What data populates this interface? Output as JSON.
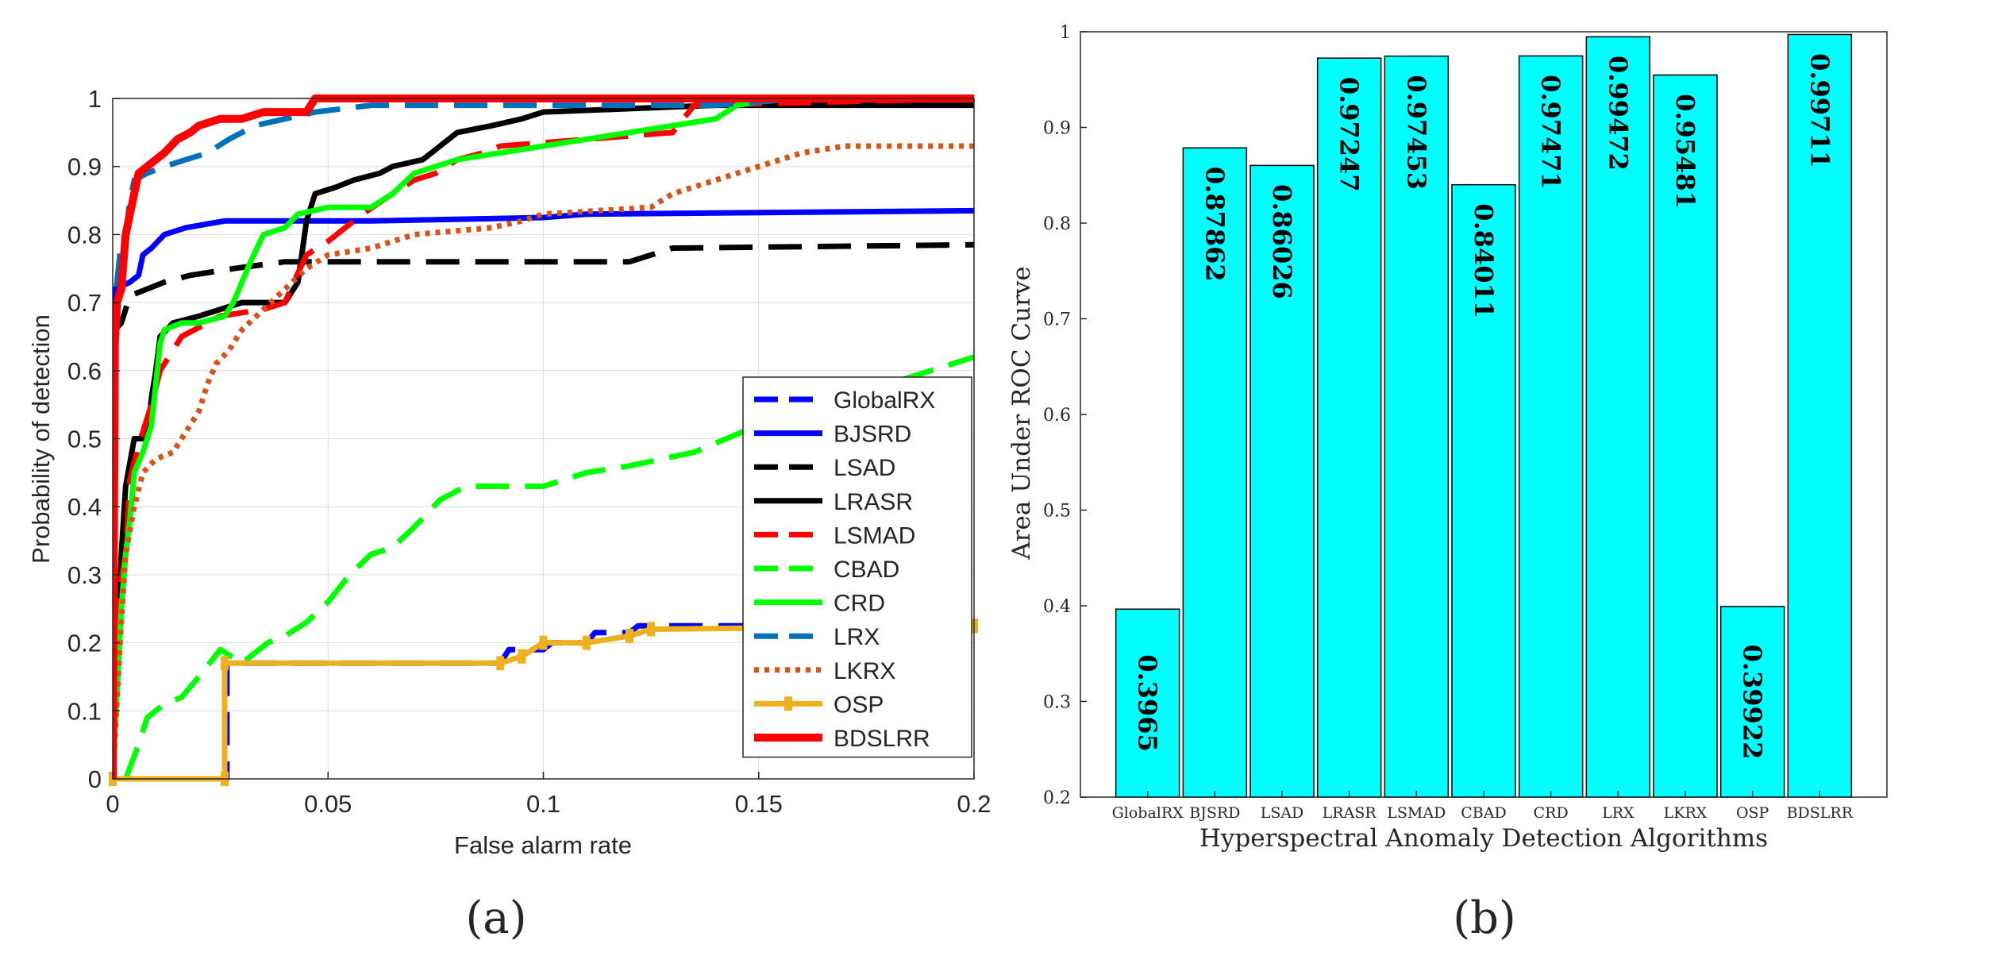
{
  "chart_data": [
    {
      "type": "line",
      "panel_label": "(a)",
      "title": "",
      "xlabel": "False alarm rate",
      "ylabel": "Probability of detection",
      "xlim": [
        0,
        0.2
      ],
      "ylim": [
        0,
        1
      ],
      "xticks": [
        "0",
        "0.05",
        "0.1",
        "0.15",
        "0.2"
      ],
      "yticks": [
        "0",
        "0.1",
        "0.2",
        "0.3",
        "0.4",
        "0.5",
        "0.6",
        "0.7",
        "0.8",
        "0.9",
        "1"
      ],
      "grid": true,
      "legend_position": "right",
      "series": [
        {
          "name": "GlobalRX",
          "color": "#0000ff",
          "style": "dashed",
          "points": [
            [
              0,
              0
            ],
            [
              0.0265,
              0
            ],
            [
              0.0265,
              0.17
            ],
            [
              0.09,
              0.17
            ],
            [
              0.092,
              0.19
            ],
            [
              0.1,
              0.19
            ],
            [
              0.102,
              0.2
            ],
            [
              0.11,
              0.2
            ],
            [
              0.112,
              0.215
            ],
            [
              0.12,
              0.215
            ],
            [
              0.122,
              0.225
            ],
            [
              0.2,
              0.225
            ]
          ]
        },
        {
          "name": "BJSRD",
          "color": "#0000ff",
          "style": "solid",
          "points": [
            [
              0,
              0
            ],
            [
              0.0005,
              0.72
            ],
            [
              0.004,
              0.73
            ],
            [
              0.006,
              0.74
            ],
            [
              0.007,
              0.77
            ],
            [
              0.009,
              0.78
            ],
            [
              0.012,
              0.8
            ],
            [
              0.017,
              0.81
            ],
            [
              0.026,
              0.82
            ],
            [
              0.06,
              0.82
            ],
            [
              0.1,
              0.825
            ],
            [
              0.11,
              0.83
            ],
            [
              0.2,
              0.835
            ]
          ]
        },
        {
          "name": "LSAD",
          "color": "#000000",
          "style": "dashed",
          "points": [
            [
              0,
              0
            ],
            [
              0.0005,
              0.66
            ],
            [
              0.002,
              0.67
            ],
            [
              0.004,
              0.71
            ],
            [
              0.008,
              0.72
            ],
            [
              0.012,
              0.73
            ],
            [
              0.018,
              0.74
            ],
            [
              0.028,
              0.75
            ],
            [
              0.04,
              0.76
            ],
            [
              0.12,
              0.76
            ],
            [
              0.13,
              0.78
            ],
            [
              0.2,
              0.785
            ]
          ]
        },
        {
          "name": "LRASR",
          "color": "#000000",
          "style": "solid",
          "points": [
            [
              0,
              0
            ],
            [
              0.002,
              0.33
            ],
            [
              0.003,
              0.43
            ],
            [
              0.005,
              0.5
            ],
            [
              0.008,
              0.5
            ],
            [
              0.009,
              0.56
            ],
            [
              0.01,
              0.6
            ],
            [
              0.011,
              0.65
            ],
            [
              0.014,
              0.67
            ],
            [
              0.02,
              0.68
            ],
            [
              0.03,
              0.7
            ],
            [
              0.04,
              0.7
            ],
            [
              0.043,
              0.73
            ],
            [
              0.045,
              0.82
            ],
            [
              0.047,
              0.86
            ],
            [
              0.052,
              0.87
            ],
            [
              0.056,
              0.88
            ],
            [
              0.062,
              0.89
            ],
            [
              0.065,
              0.9
            ],
            [
              0.072,
              0.91
            ],
            [
              0.076,
              0.93
            ],
            [
              0.08,
              0.95
            ],
            [
              0.088,
              0.96
            ],
            [
              0.095,
              0.97
            ],
            [
              0.1,
              0.98
            ],
            [
              0.14,
              0.99
            ],
            [
              0.2,
              0.99
            ]
          ]
        },
        {
          "name": "LSMAD",
          "color": "#ff0000",
          "style": "dashed",
          "points": [
            [
              0,
              0
            ],
            [
              0.001,
              0.26
            ],
            [
              0.003,
              0.33
            ],
            [
              0.004,
              0.44
            ],
            [
              0.006,
              0.49
            ],
            [
              0.009,
              0.55
            ],
            [
              0.011,
              0.6
            ],
            [
              0.012,
              0.61
            ],
            [
              0.016,
              0.65
            ],
            [
              0.025,
              0.68
            ],
            [
              0.035,
              0.69
            ],
            [
              0.04,
              0.7
            ],
            [
              0.042,
              0.73
            ],
            [
              0.045,
              0.77
            ],
            [
              0.05,
              0.79
            ],
            [
              0.052,
              0.8
            ],
            [
              0.058,
              0.83
            ],
            [
              0.065,
              0.86
            ],
            [
              0.07,
              0.88
            ],
            [
              0.075,
              0.89
            ],
            [
              0.08,
              0.91
            ],
            [
              0.086,
              0.92
            ],
            [
              0.09,
              0.93
            ],
            [
              0.13,
              0.95
            ],
            [
              0.135,
              0.99
            ],
            [
              0.2,
              1.0
            ]
          ]
        },
        {
          "name": "CBAD",
          "color": "#00ff00",
          "style": "dashed",
          "points": [
            [
              0.003,
              0
            ],
            [
              0.006,
              0.05
            ],
            [
              0.008,
              0.09
            ],
            [
              0.012,
              0.11
            ],
            [
              0.016,
              0.12
            ],
            [
              0.02,
              0.15
            ],
            [
              0.025,
              0.19
            ],
            [
              0.03,
              0.17
            ],
            [
              0.036,
              0.2
            ],
            [
              0.04,
              0.21
            ],
            [
              0.045,
              0.23
            ],
            [
              0.05,
              0.26
            ],
            [
              0.055,
              0.3
            ],
            [
              0.06,
              0.33
            ],
            [
              0.065,
              0.34
            ],
            [
              0.07,
              0.37
            ],
            [
              0.076,
              0.41
            ],
            [
              0.082,
              0.43
            ],
            [
              0.1,
              0.43
            ],
            [
              0.11,
              0.45
            ],
            [
              0.12,
              0.46
            ],
            [
              0.135,
              0.48
            ],
            [
              0.15,
              0.52
            ],
            [
              0.16,
              0.55
            ],
            [
              0.175,
              0.57
            ],
            [
              0.19,
              0.6
            ],
            [
              0.2,
              0.62
            ]
          ]
        },
        {
          "name": "CRD",
          "color": "#00ff00",
          "style": "solid",
          "points": [
            [
              0,
              0
            ],
            [
              0.001,
              0.13
            ],
            [
              0.002,
              0.25
            ],
            [
              0.003,
              0.33
            ],
            [
              0.004,
              0.38
            ],
            [
              0.005,
              0.45
            ],
            [
              0.007,
              0.48
            ],
            [
              0.009,
              0.52
            ],
            [
              0.01,
              0.58
            ],
            [
              0.011,
              0.64
            ],
            [
              0.012,
              0.66
            ],
            [
              0.016,
              0.67
            ],
            [
              0.02,
              0.67
            ],
            [
              0.026,
              0.68
            ],
            [
              0.028,
              0.7
            ],
            [
              0.03,
              0.73
            ],
            [
              0.032,
              0.76
            ],
            [
              0.035,
              0.8
            ],
            [
              0.04,
              0.81
            ],
            [
              0.043,
              0.83
            ],
            [
              0.05,
              0.84
            ],
            [
              0.06,
              0.84
            ],
            [
              0.065,
              0.86
            ],
            [
              0.07,
              0.89
            ],
            [
              0.075,
              0.9
            ],
            [
              0.08,
              0.91
            ],
            [
              0.09,
              0.92
            ],
            [
              0.1,
              0.93
            ],
            [
              0.11,
              0.94
            ],
            [
              0.13,
              0.96
            ],
            [
              0.14,
              0.97
            ],
            [
              0.145,
              0.99
            ],
            [
              0.155,
              1.0
            ],
            [
              0.2,
              1.0
            ]
          ]
        },
        {
          "name": "LRX",
          "color": "#0072bd",
          "style": "dashed",
          "points": [
            [
              0,
              0
            ],
            [
              0.0005,
              0.7
            ],
            [
              0.002,
              0.79
            ],
            [
              0.003,
              0.8
            ],
            [
              0.004,
              0.85
            ],
            [
              0.005,
              0.88
            ],
            [
              0.008,
              0.89
            ],
            [
              0.012,
              0.9
            ],
            [
              0.017,
              0.91
            ],
            [
              0.022,
              0.92
            ],
            [
              0.027,
              0.94
            ],
            [
              0.033,
              0.96
            ],
            [
              0.04,
              0.97
            ],
            [
              0.047,
              0.98
            ],
            [
              0.06,
              0.99
            ],
            [
              0.14,
              0.99
            ],
            [
              0.16,
              1.0
            ],
            [
              0.2,
              1.0
            ]
          ]
        },
        {
          "name": "LKRX",
          "color": "#d95319",
          "style": "dotted",
          "points": [
            [
              0,
              0
            ],
            [
              0.002,
              0.23
            ],
            [
              0.003,
              0.33
            ],
            [
              0.005,
              0.4
            ],
            [
              0.007,
              0.45
            ],
            [
              0.01,
              0.47
            ],
            [
              0.014,
              0.48
            ],
            [
              0.016,
              0.5
            ],
            [
              0.018,
              0.52
            ],
            [
              0.02,
              0.54
            ],
            [
              0.022,
              0.58
            ],
            [
              0.024,
              0.61
            ],
            [
              0.027,
              0.63
            ],
            [
              0.03,
              0.66
            ],
            [
              0.035,
              0.69
            ],
            [
              0.04,
              0.72
            ],
            [
              0.045,
              0.75
            ],
            [
              0.05,
              0.77
            ],
            [
              0.06,
              0.78
            ],
            [
              0.065,
              0.79
            ],
            [
              0.07,
              0.8
            ],
            [
              0.088,
              0.81
            ],
            [
              0.095,
              0.82
            ],
            [
              0.1,
              0.83
            ],
            [
              0.125,
              0.84
            ],
            [
              0.13,
              0.86
            ],
            [
              0.14,
              0.88
            ],
            [
              0.15,
              0.9
            ],
            [
              0.16,
              0.92
            ],
            [
              0.17,
              0.93
            ],
            [
              0.2,
              0.93
            ]
          ]
        },
        {
          "name": "OSP",
          "color": "#edb120",
          "style": "solid-marker",
          "points": [
            [
              0,
              0
            ],
            [
              0.026,
              0
            ],
            [
              0.026,
              0.17
            ],
            [
              0.09,
              0.17
            ],
            [
              0.095,
              0.18
            ],
            [
              0.1,
              0.2
            ],
            [
              0.11,
              0.2
            ],
            [
              0.12,
              0.21
            ],
            [
              0.125,
              0.22
            ],
            [
              0.2,
              0.225
            ]
          ]
        },
        {
          "name": "BDSLRR",
          "color": "#ff0000",
          "style": "solid",
          "points": [
            [
              0,
              0
            ],
            [
              0.0005,
              0.64
            ],
            [
              0.001,
              0.7
            ],
            [
              0.002,
              0.72
            ],
            [
              0.003,
              0.8
            ],
            [
              0.004,
              0.83
            ],
            [
              0.005,
              0.86
            ],
            [
              0.006,
              0.89
            ],
            [
              0.008,
              0.9
            ],
            [
              0.01,
              0.91
            ],
            [
              0.012,
              0.92
            ],
            [
              0.015,
              0.94
            ],
            [
              0.018,
              0.95
            ],
            [
              0.02,
              0.96
            ],
            [
              0.025,
              0.97
            ],
            [
              0.03,
              0.97
            ],
            [
              0.035,
              0.98
            ],
            [
              0.045,
              0.98
            ],
            [
              0.047,
              1.0
            ],
            [
              0.2,
              1.0
            ]
          ]
        }
      ]
    },
    {
      "type": "bar",
      "panel_label": "(b)",
      "title": "",
      "xlabel": "Hyperspectral Anomaly Detection Algorithms",
      "ylabel": "Area Under ROC Curve",
      "ylim": [
        0.2,
        1
      ],
      "yticks": [
        "0.2",
        "0.3",
        "0.4",
        "0.5",
        "0.6",
        "0.7",
        "0.8",
        "0.9",
        "1"
      ],
      "categories": [
        "GlobalRX",
        "BJSRD",
        "LSAD",
        "LRASR",
        "LSMAD",
        "CBAD",
        "CRD",
        "LRX",
        "LKRX",
        "OSP",
        "BDSLRR"
      ],
      "values": [
        0.3965,
        0.87862,
        0.86026,
        0.97247,
        0.97453,
        0.84011,
        0.97471,
        0.99472,
        0.95481,
        0.39922,
        0.99711
      ],
      "value_labels": [
        "0.3965",
        "0.87862",
        "0.86026",
        "0.97247",
        "0.97453",
        "0.84011",
        "0.97471",
        "0.99472",
        "0.95481",
        "0.39922",
        "0.99711"
      ],
      "bar_color": "#00ffff",
      "grid": false
    }
  ]
}
